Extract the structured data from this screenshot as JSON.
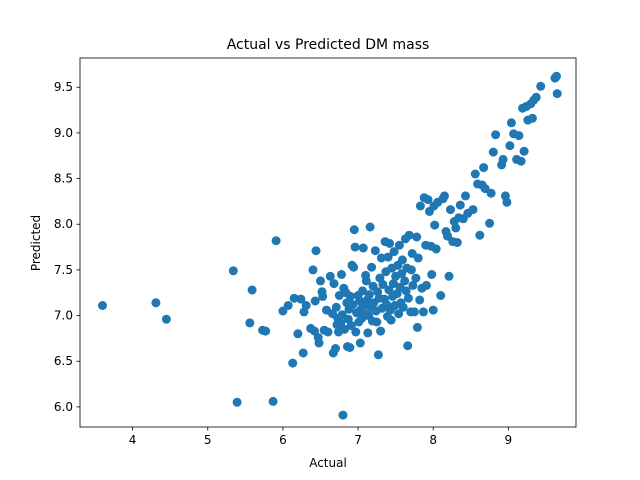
{
  "chart_data": {
    "type": "scatter",
    "title": "Actual vs Predicted DM mass",
    "xlabel": "Actual",
    "ylabel": "Predicted",
    "xlim": [
      3.3,
      9.9
    ],
    "ylim": [
      5.78,
      9.82
    ],
    "xticks": [
      "4",
      "5",
      "6",
      "7",
      "8",
      "9"
    ],
    "yticks": [
      "6.0",
      "6.5",
      "7.0",
      "7.5",
      "8.0",
      "8.5",
      "9.0",
      "9.5"
    ],
    "grid": false,
    "marker_color": "#1f77b4",
    "points": [
      [
        3.6,
        7.11
      ],
      [
        4.31,
        7.14
      ],
      [
        4.45,
        6.96
      ],
      [
        5.34,
        7.49
      ],
      [
        5.39,
        6.05
      ],
      [
        5.56,
        6.92
      ],
      [
        5.59,
        7.28
      ],
      [
        5.73,
        6.84
      ],
      [
        5.77,
        6.83
      ],
      [
        5.87,
        6.06
      ],
      [
        5.91,
        7.82
      ],
      [
        6.0,
        7.05
      ],
      [
        6.07,
        7.11
      ],
      [
        6.13,
        6.48
      ],
      [
        6.15,
        7.19
      ],
      [
        6.2,
        6.8
      ],
      [
        6.24,
        7.18
      ],
      [
        6.27,
        6.59
      ],
      [
        6.28,
        7.04
      ],
      [
        6.31,
        7.11
      ],
      [
        6.37,
        6.86
      ],
      [
        6.4,
        7.5
      ],
      [
        6.42,
        6.83
      ],
      [
        6.43,
        7.16
      ],
      [
        6.44,
        7.71
      ],
      [
        6.47,
        6.76
      ],
      [
        6.48,
        6.7
      ],
      [
        6.5,
        7.38
      ],
      [
        6.52,
        7.26
      ],
      [
        6.53,
        7.21
      ],
      [
        6.55,
        6.84
      ],
      [
        6.58,
        7.06
      ],
      [
        6.6,
        6.82
      ],
      [
        6.63,
        7.43
      ],
      [
        6.66,
        7.02
      ],
      [
        6.67,
        6.59
      ],
      [
        6.68,
        7.35
      ],
      [
        6.7,
        6.64
      ],
      [
        6.71,
        7.09
      ],
      [
        6.72,
        6.9
      ],
      [
        6.73,
        6.97
      ],
      [
        6.74,
        6.82
      ],
      [
        6.75,
        7.22
      ],
      [
        6.77,
        6.92
      ],
      [
        6.78,
        7.45
      ],
      [
        6.79,
        7.01
      ],
      [
        6.8,
        5.91
      ],
      [
        6.81,
        7.3
      ],
      [
        6.82,
        6.85
      ],
      [
        6.84,
        7.25
      ],
      [
        6.85,
        7.14
      ],
      [
        6.86,
        6.66
      ],
      [
        6.87,
        6.96
      ],
      [
        6.88,
        7.07
      ],
      [
        6.89,
        6.65
      ],
      [
        6.9,
        7.21
      ],
      [
        6.91,
        6.89
      ],
      [
        6.92,
        7.55
      ],
      [
        6.93,
        7.12
      ],
      [
        6.94,
        7.53
      ],
      [
        6.95,
        7.94
      ],
      [
        6.96,
        7.75
      ],
      [
        6.97,
        6.82
      ],
      [
        6.98,
        7.03
      ],
      [
        7.0,
        7.22
      ],
      [
        7.01,
        6.93
      ],
      [
        7.02,
        7.16
      ],
      [
        7.03,
        6.7
      ],
      [
        7.04,
        7.07
      ],
      [
        7.05,
        6.97
      ],
      [
        7.06,
        7.27
      ],
      [
        7.07,
        7.74
      ],
      [
        7.08,
        7.11
      ],
      [
        7.09,
        7.02
      ],
      [
        7.1,
        7.44
      ],
      [
        7.11,
        7.38
      ],
      [
        7.12,
        7.17
      ],
      [
        7.13,
        6.81
      ],
      [
        7.14,
        7.0
      ],
      [
        7.15,
        7.23
      ],
      [
        7.16,
        7.97
      ],
      [
        7.17,
        7.09
      ],
      [
        7.18,
        7.53
      ],
      [
        7.19,
        6.94
      ],
      [
        7.2,
        7.32
      ],
      [
        7.21,
        7.14
      ],
      [
        7.23,
        7.71
      ],
      [
        7.24,
        7.05
      ],
      [
        7.25,
        6.93
      ],
      [
        7.26,
        7.26
      ],
      [
        7.27,
        6.57
      ],
      [
        7.28,
        7.19
      ],
      [
        7.29,
        7.41
      ],
      [
        7.3,
        6.83
      ],
      [
        7.31,
        7.63
      ],
      [
        7.32,
        7.08
      ],
      [
        7.33,
        7.34
      ],
      [
        7.35,
        7.18
      ],
      [
        7.36,
        7.81
      ],
      [
        7.37,
        7.48
      ],
      [
        7.38,
        7.12
      ],
      [
        7.39,
        6.99
      ],
      [
        7.4,
        7.64
      ],
      [
        7.41,
        7.28
      ],
      [
        7.42,
        7.79
      ],
      [
        7.43,
        7.06
      ],
      [
        7.44,
        6.95
      ],
      [
        7.45,
        7.52
      ],
      [
        7.46,
        7.21
      ],
      [
        7.47,
        7.35
      ],
      [
        7.48,
        7.7
      ],
      [
        7.49,
        7.11
      ],
      [
        7.5,
        7.43
      ],
      [
        7.52,
        7.24
      ],
      [
        7.53,
        7.55
      ],
      [
        7.54,
        7.02
      ],
      [
        7.55,
        7.77
      ],
      [
        7.56,
        7.31
      ],
      [
        7.57,
        7.14
      ],
      [
        7.58,
        7.46
      ],
      [
        7.59,
        7.61
      ],
      [
        7.6,
        7.09
      ],
      [
        7.62,
        7.38
      ],
      [
        7.63,
        7.84
      ],
      [
        7.64,
        7.27
      ],
      [
        7.65,
        7.52
      ],
      [
        7.66,
        6.67
      ],
      [
        7.67,
        7.19
      ],
      [
        7.68,
        7.88
      ],
      [
        7.7,
        7.04
      ],
      [
        7.71,
        7.5
      ],
      [
        7.72,
        7.68
      ],
      [
        7.73,
        7.33
      ],
      [
        7.75,
        7.04
      ],
      [
        7.77,
        7.41
      ],
      [
        7.78,
        7.86
      ],
      [
        7.79,
        6.87
      ],
      [
        7.8,
        7.63
      ],
      [
        7.82,
        7.17
      ],
      [
        7.83,
        8.2
      ],
      [
        7.85,
        7.3
      ],
      [
        7.87,
        7.04
      ],
      [
        7.88,
        8.29
      ],
      [
        7.9,
        7.77
      ],
      [
        7.91,
        7.33
      ],
      [
        7.93,
        8.27
      ],
      [
        7.95,
        8.14
      ],
      [
        7.97,
        7.76
      ],
      [
        7.98,
        7.45
      ],
      [
        8.0,
        7.06
      ],
      [
        8.01,
        8.2
      ],
      [
        8.02,
        7.99
      ],
      [
        8.04,
        7.73
      ],
      [
        8.06,
        8.24
      ],
      [
        8.1,
        7.22
      ],
      [
        8.13,
        8.28
      ],
      [
        8.15,
        8.31
      ],
      [
        8.17,
        7.92
      ],
      [
        8.19,
        7.87
      ],
      [
        8.21,
        7.43
      ],
      [
        8.23,
        8.16
      ],
      [
        8.26,
        7.81
      ],
      [
        8.28,
        8.03
      ],
      [
        8.3,
        7.96
      ],
      [
        8.32,
        7.8
      ],
      [
        8.34,
        8.07
      ],
      [
        8.36,
        8.21
      ],
      [
        8.4,
        8.06
      ],
      [
        8.43,
        8.31
      ],
      [
        8.46,
        8.12
      ],
      [
        8.53,
        8.16
      ],
      [
        8.56,
        8.55
      ],
      [
        8.59,
        8.44
      ],
      [
        8.62,
        7.88
      ],
      [
        8.65,
        8.43
      ],
      [
        8.67,
        8.62
      ],
      [
        8.69,
        8.39
      ],
      [
        8.75,
        8.01
      ],
      [
        8.77,
        8.34
      ],
      [
        8.8,
        8.79
      ],
      [
        8.83,
        8.98
      ],
      [
        8.91,
        8.65
      ],
      [
        8.93,
        8.71
      ],
      [
        8.96,
        8.31
      ],
      [
        8.98,
        8.24
      ],
      [
        9.02,
        8.86
      ],
      [
        9.04,
        9.11
      ],
      [
        9.07,
        8.99
      ],
      [
        9.11,
        8.71
      ],
      [
        9.14,
        8.97
      ],
      [
        9.17,
        8.69
      ],
      [
        9.19,
        9.27
      ],
      [
        9.21,
        8.8
      ],
      [
        9.24,
        9.29
      ],
      [
        9.26,
        9.14
      ],
      [
        9.3,
        9.32
      ],
      [
        9.32,
        9.16
      ],
      [
        9.34,
        9.36
      ],
      [
        9.37,
        9.39
      ],
      [
        9.43,
        9.51
      ],
      [
        9.62,
        9.6
      ],
      [
        9.64,
        9.62
      ],
      [
        9.65,
        9.43
      ]
    ]
  }
}
